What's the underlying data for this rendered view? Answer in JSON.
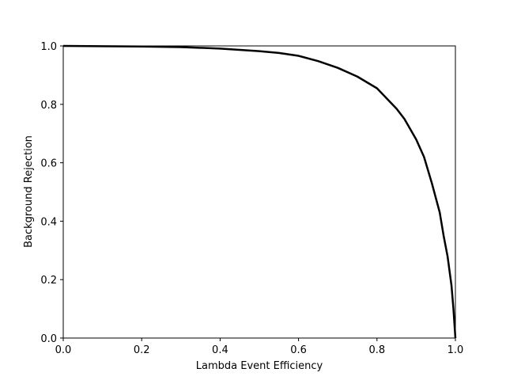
{
  "chart_data": {
    "type": "line",
    "xlabel": "Lambda Event Efficiency",
    "ylabel": "Background Rejection",
    "x": [
      0,
      0.2,
      0.3,
      0.4,
      0.5,
      0.55,
      0.6,
      0.65,
      0.7,
      0.75,
      0.8,
      0.85,
      0.87,
      0.9,
      0.92,
      0.94,
      0.96,
      0.97,
      0.98,
      0.99,
      0.995,
      1.0
    ],
    "series": [
      {
        "color": "#000000",
        "values": [
          1.0,
          0.998,
          0.996,
          0.991,
          0.982,
          0.976,
          0.966,
          0.948,
          0.925,
          0.895,
          0.855,
          0.785,
          0.75,
          0.68,
          0.62,
          0.53,
          0.43,
          0.35,
          0.28,
          0.18,
          0.1,
          0.0
        ]
      }
    ],
    "xlim": [
      0,
      1
    ],
    "ylim": [
      0,
      1
    ],
    "xticks": [
      {
        "value": 0,
        "label": "0.0"
      },
      0.2,
      0.4,
      0.6,
      0.8,
      {
        "value": 1,
        "label": "1.0"
      }
    ],
    "yticks": [
      {
        "value": 0,
        "label": "0.0"
      },
      0.2,
      0.4,
      0.6,
      0.8,
      {
        "value": 1,
        "label": "1.0"
      }
    ],
    "grid": false
  }
}
